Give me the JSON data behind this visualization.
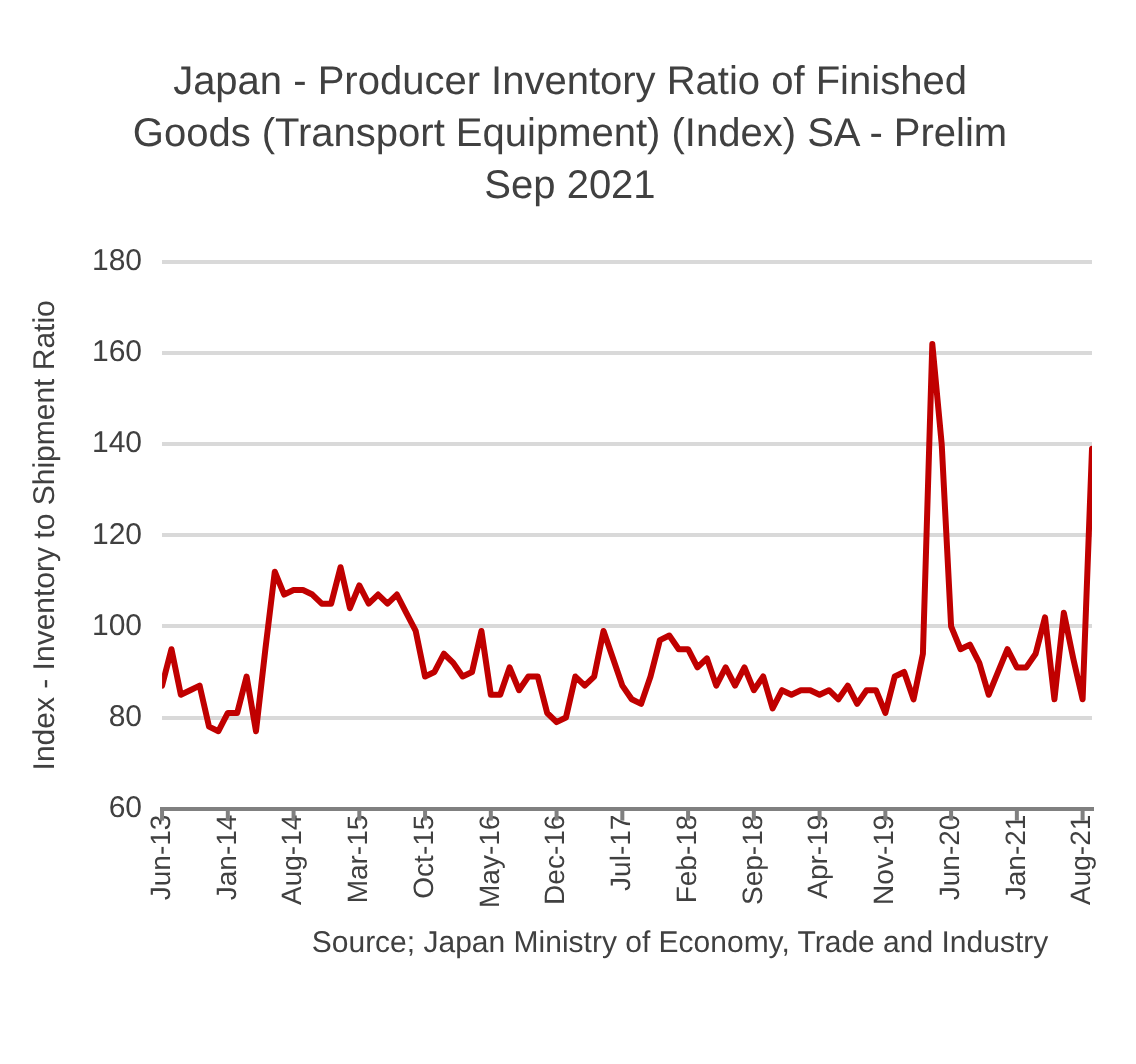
{
  "chart_data": {
    "type": "line",
    "title": "Japan - Producer Inventory Ratio of Finished Goods (Transport Equipment) (Index) SA - Prelim Sep 2021",
    "ylabel": "Index - Inventory to Shipment Ratio",
    "annotations": [
      "Source; Japan Ministry of Economy, Trade and Industry"
    ],
    "x": [
      "2013-06",
      "2013-07",
      "2013-08",
      "2013-09",
      "2013-10",
      "2013-11",
      "2013-12",
      "2014-01",
      "2014-02",
      "2014-03",
      "2014-04",
      "2014-05",
      "2014-06",
      "2014-07",
      "2014-08",
      "2014-09",
      "2014-10",
      "2014-11",
      "2014-12",
      "2015-01",
      "2015-02",
      "2015-03",
      "2015-04",
      "2015-05",
      "2015-06",
      "2015-07",
      "2015-08",
      "2015-09",
      "2015-10",
      "2015-11",
      "2015-12",
      "2016-01",
      "2016-02",
      "2016-03",
      "2016-04",
      "2016-05",
      "2016-06",
      "2016-07",
      "2016-08",
      "2016-09",
      "2016-10",
      "2016-11",
      "2016-12",
      "2017-01",
      "2017-02",
      "2017-03",
      "2017-04",
      "2017-05",
      "2017-06",
      "2017-07",
      "2017-08",
      "2017-09",
      "2017-10",
      "2017-11",
      "2017-12",
      "2018-01",
      "2018-02",
      "2018-03",
      "2018-04",
      "2018-05",
      "2018-06",
      "2018-07",
      "2018-08",
      "2018-09",
      "2018-10",
      "2018-11",
      "2018-12",
      "2019-01",
      "2019-02",
      "2019-03",
      "2019-04",
      "2019-05",
      "2019-06",
      "2019-07",
      "2019-08",
      "2019-09",
      "2019-10",
      "2019-11",
      "2019-12",
      "2020-01",
      "2020-02",
      "2020-03",
      "2020-04",
      "2020-05",
      "2020-06",
      "2020-07",
      "2020-08",
      "2020-09",
      "2020-10",
      "2020-11",
      "2020-12",
      "2021-01",
      "2021-02",
      "2021-03",
      "2021-04",
      "2021-05",
      "2021-06",
      "2021-07",
      "2021-08",
      "2021-09"
    ],
    "series": [
      {
        "color": "#c00000",
        "values": [
          87,
          95,
          85,
          86,
          87,
          78,
          77,
          81,
          81,
          89,
          77,
          95,
          112,
          107,
          108,
          108,
          107,
          105,
          105,
          113,
          104,
          109,
          105,
          107,
          105,
          107,
          103,
          99,
          89,
          90,
          94,
          92,
          89,
          90,
          99,
          85,
          85,
          91,
          86,
          89,
          89,
          81,
          79,
          80,
          89,
          87,
          89,
          99,
          93,
          87,
          84,
          83,
          89,
          97,
          98,
          95,
          95,
          91,
          93,
          87,
          91,
          87,
          91,
          86,
          89,
          82,
          86,
          85,
          86,
          86,
          85,
          86,
          84,
          87,
          83,
          86,
          86,
          81,
          89,
          90,
          84,
          94,
          162,
          140,
          100,
          95,
          96,
          92,
          85,
          90,
          95,
          91,
          91,
          94,
          102,
          84,
          103,
          93,
          84,
          139
        ]
      }
    ],
    "xlim": [
      "2013-06",
      "2021-09"
    ],
    "xticks": [
      {
        "value": "2013-06",
        "label": "Jun-13"
      },
      {
        "value": "2014-01",
        "label": "Jan-14"
      },
      {
        "value": "2014-08",
        "label": "Aug-14"
      },
      {
        "value": "2015-03",
        "label": "Mar-15"
      },
      {
        "value": "2015-10",
        "label": "Oct-15"
      },
      {
        "value": "2016-05",
        "label": "May-16"
      },
      {
        "value": "2016-12",
        "label": "Dec-16"
      },
      {
        "value": "2017-07",
        "label": "Jul-17"
      },
      {
        "value": "2018-02",
        "label": "Feb-18"
      },
      {
        "value": "2018-09",
        "label": "Sep-18"
      },
      {
        "value": "2019-04",
        "label": "Apr-19"
      },
      {
        "value": "2019-11",
        "label": "Nov-19"
      },
      {
        "value": "2020-06",
        "label": "Jun-20"
      },
      {
        "value": "2021-01",
        "label": "Jan-21"
      },
      {
        "value": "2021-08",
        "label": "Aug-21"
      }
    ],
    "ylim": [
      60,
      180
    ],
    "yticks": [
      60,
      80,
      100,
      120,
      140,
      160,
      180
    ],
    "grid": "y",
    "legend": false,
    "marker": "none",
    "line_style": "solid"
  }
}
